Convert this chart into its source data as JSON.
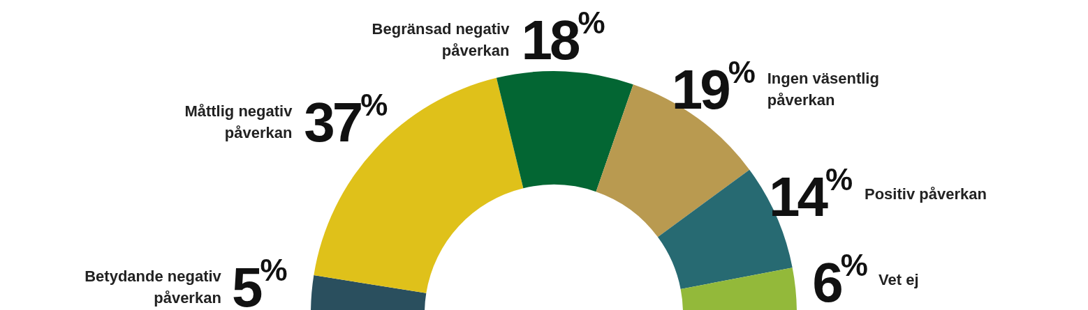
{
  "chart_data": {
    "type": "donut",
    "categories": [
      "Betydande negativ påverkan",
      "Måttlig negativ påverkan",
      "Begränsad negativ påverkan",
      "Ingen väsentlig påverkan",
      "Positiv påverkan",
      "Vet ej"
    ],
    "values": [
      5,
      37,
      18,
      19,
      14,
      6
    ],
    "colors": [
      "#2a4f5e",
      "#dfc11a",
      "#036633",
      "#b99a50",
      "#276a72",
      "#93b93a"
    ],
    "value_labels": [
      "5$^{%}$",
      "37$^{%}$",
      "18$^{%}$",
      "19$^{%}$",
      "14$^{%}$",
      "6$^{%}$"
    ],
    "legend": false
  }
}
